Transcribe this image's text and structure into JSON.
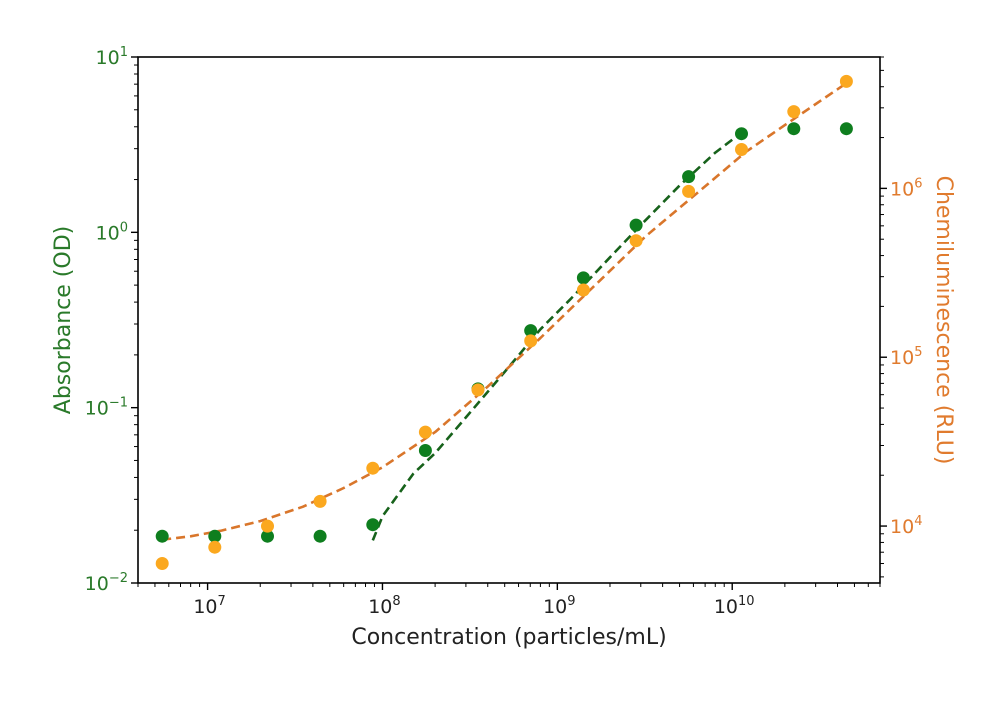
{
  "chart_data": {
    "type": "scatter",
    "title": "",
    "x_axis": {
      "label": "Concentration (particles/mL)",
      "scale": "log",
      "range": [
        4000000,
        70000000000
      ],
      "tick_values": [
        10000000,
        100000000,
        1000000000,
        10000000000
      ],
      "tick_labels": [
        {
          "base": "10",
          "exp": "7"
        },
        {
          "base": "10",
          "exp": "8"
        },
        {
          "base": "10",
          "exp": "9"
        },
        {
          "base": "10",
          "exp": "10"
        }
      ]
    },
    "y_left": {
      "label": "Absorbance (OD)",
      "scale": "log",
      "range": [
        0.01,
        10
      ],
      "tick_values": [
        0.01,
        0.1,
        1,
        10
      ],
      "tick_labels": [
        {
          "base": "10",
          "exp": "−2"
        },
        {
          "base": "10",
          "exp": "−1"
        },
        {
          "base": "10",
          "exp": "0"
        },
        {
          "base": "10",
          "exp": "1"
        }
      ],
      "color": "#2a7a2a"
    },
    "y_right": {
      "label": "Chemiluminescence (RLU)",
      "scale": "log",
      "range": [
        4600,
        6000000
      ],
      "tick_values": [
        10000,
        100000,
        1000000
      ],
      "tick_labels": [
        {
          "base": "10",
          "exp": "4"
        },
        {
          "base": "10",
          "exp": "5"
        },
        {
          "base": "10",
          "exp": "6"
        }
      ],
      "color": "#e07b2e"
    },
    "series": [
      {
        "axis": "left",
        "kind": "points",
        "color": "#0e7e1e",
        "x": [
          5500000,
          11000000,
          22000000,
          44000000,
          88000000,
          176000000,
          352000000,
          704000000,
          1410000000,
          2820000000,
          5630000000,
          11300000000,
          22500000000,
          45000000000
        ],
        "y": [
          0.0185,
          0.0185,
          0.0185,
          0.0185,
          0.0215,
          0.057,
          0.128,
          0.275,
          0.55,
          1.1,
          2.08,
          3.65,
          3.9,
          3.9
        ]
      },
      {
        "axis": "right",
        "kind": "points",
        "color": "#fba81f",
        "x": [
          5500000,
          11000000,
          22000000,
          44000000,
          88000000,
          176000000,
          352000000,
          704000000,
          1410000000,
          2820000000,
          5630000000,
          11300000000,
          22500000000,
          45000000000
        ],
        "y": [
          6000,
          7500,
          10000,
          14000,
          22000,
          36000,
          64000,
          125000,
          250000,
          490000,
          960000,
          1700000,
          2850000,
          4300000
        ]
      },
      {
        "axis": "left",
        "kind": "fit",
        "style": "dashed",
        "color": "#17621b",
        "x": [
          88000000,
          100000000,
          150000000,
          200000000,
          300000000,
          500000000,
          800000000,
          1200000000,
          2000000000,
          3000000000,
          5000000000,
          8000000000,
          11300000000
        ],
        "y": [
          0.0175,
          0.024,
          0.042,
          0.055,
          0.088,
          0.16,
          0.28,
          0.42,
          0.72,
          1.1,
          1.85,
          2.85,
          3.7
        ]
      },
      {
        "axis": "right",
        "kind": "fit",
        "style": "dashed",
        "color": "#d9762b",
        "x": [
          5500000,
          8000000,
          12000000,
          20000000,
          35000000,
          60000000,
          100000000,
          200000000,
          400000000,
          800000000,
          1600000000,
          3200000000,
          6400000000,
          12000000000,
          24000000000,
          45000000000
        ],
        "y": [
          8300,
          8700,
          9400,
          10700,
          13000,
          16800,
          22300,
          36000,
          67000,
          130000,
          260000,
          520000,
          950000,
          1650000,
          2700000,
          4200000
        ]
      }
    ],
    "grid": false,
    "legend": "none"
  }
}
